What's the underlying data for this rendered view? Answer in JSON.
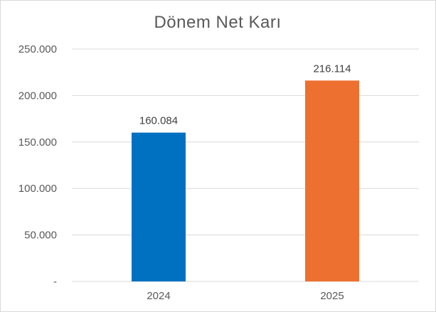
{
  "chart_data": {
    "type": "bar",
    "title": "Dönem Net Karı",
    "categories": [
      "2024",
      "2025"
    ],
    "values": [
      160084,
      216114
    ],
    "data_labels": [
      "160.084",
      "216.114"
    ],
    "ylim": [
      0,
      250000
    ],
    "yticks": [
      0,
      50000,
      100000,
      150000,
      200000,
      250000
    ],
    "ytick_labels": [
      "-",
      "50.000",
      "100.000",
      "150.000",
      "200.000",
      "250.000"
    ],
    "bar_colors": [
      "#0070c0",
      "#ed7031"
    ],
    "grid": true,
    "legend": "none"
  }
}
